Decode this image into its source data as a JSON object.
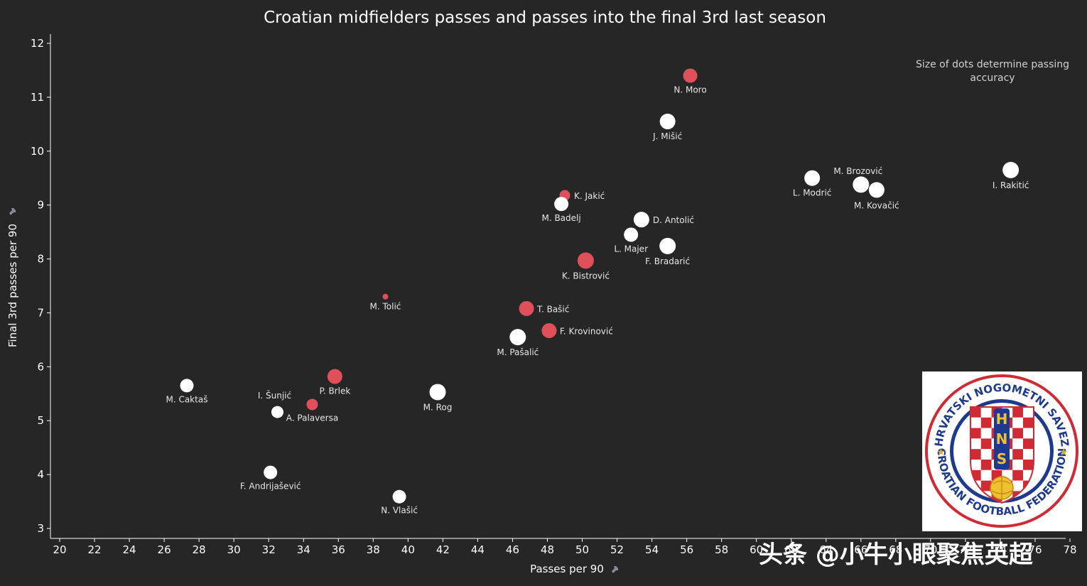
{
  "chart_data": {
    "type": "scatter",
    "title": "Croatian midfielders passes and passes into the final 3rd last season",
    "xlabel": "Passes per 90",
    "ylabel": "Final 3rd passes per 90",
    "xlim": [
      19,
      79
    ],
    "ylim": [
      2.85,
      12.2
    ],
    "xticks": [
      20,
      22,
      24,
      26,
      28,
      30,
      32,
      34,
      36,
      38,
      40,
      42,
      44,
      46,
      48,
      50,
      52,
      54,
      56,
      58,
      60,
      62,
      64,
      66,
      68,
      70,
      72,
      74,
      76,
      78
    ],
    "yticks": [
      3,
      4,
      5,
      6,
      7,
      8,
      9,
      10,
      11,
      12
    ],
    "annotation": "Size of dots determine passing accuracy",
    "colors": {
      "white": "#ffffff",
      "red": "#e0505a"
    },
    "points": [
      {
        "name": "N. Moro",
        "x": 56.2,
        "y": 11.4,
        "color": "red",
        "size": 1.0
      },
      {
        "name": "J. Mišić",
        "x": 54.9,
        "y": 10.55,
        "color": "white",
        "size": 1.1
      },
      {
        "name": "I. Rakitić",
        "x": 74.6,
        "y": 9.65,
        "color": "white",
        "size": 1.15
      },
      {
        "name": "L. Modrić",
        "x": 63.2,
        "y": 9.5,
        "color": "white",
        "size": 1.1
      },
      {
        "name": "M. Brozović",
        "x": 66.0,
        "y": 9.38,
        "color": "white",
        "size": 1.15
      },
      {
        "name": "M. Kovačić",
        "x": 66.9,
        "y": 9.28,
        "color": "white",
        "size": 1.1
      },
      {
        "name": "K. Jakić",
        "x": 49.0,
        "y": 9.18,
        "color": "red",
        "size": 0.75
      },
      {
        "name": "M. Badelj",
        "x": 48.8,
        "y": 9.02,
        "color": "white",
        "size": 1.0
      },
      {
        "name": "D. Antolić",
        "x": 53.4,
        "y": 8.73,
        "color": "white",
        "size": 1.1
      },
      {
        "name": "L. Majer",
        "x": 52.8,
        "y": 8.45,
        "color": "white",
        "size": 1.0
      },
      {
        "name": "F. Bradarić",
        "x": 54.9,
        "y": 8.24,
        "color": "white",
        "size": 1.15
      },
      {
        "name": "K. Bistrović",
        "x": 50.2,
        "y": 7.97,
        "color": "red",
        "size": 1.15
      },
      {
        "name": "M. Tolić",
        "x": 38.7,
        "y": 7.3,
        "color": "red",
        "size": 0.4
      },
      {
        "name": "T. Bašić",
        "x": 46.8,
        "y": 7.08,
        "color": "red",
        "size": 1.05
      },
      {
        "name": "F. Krovinović",
        "x": 48.1,
        "y": 6.67,
        "color": "red",
        "size": 1.05
      },
      {
        "name": "M. Pašalić",
        "x": 46.3,
        "y": 6.55,
        "color": "white",
        "size": 1.15
      },
      {
        "name": "P. Brlek",
        "x": 35.8,
        "y": 5.82,
        "color": "red",
        "size": 1.05
      },
      {
        "name": "M. Caktaš",
        "x": 27.3,
        "y": 5.65,
        "color": "white",
        "size": 0.95
      },
      {
        "name": "M. Rog",
        "x": 41.7,
        "y": 5.53,
        "color": "white",
        "size": 1.15
      },
      {
        "name": "A. Palaversa",
        "x": 34.5,
        "y": 5.3,
        "color": "red",
        "size": 0.8
      },
      {
        "name": "I. Šunjić",
        "x": 32.5,
        "y": 5.16,
        "color": "white",
        "size": 0.85
      },
      {
        "name": "F. Andrijašević",
        "x": 32.1,
        "y": 4.04,
        "color": "white",
        "size": 0.95
      },
      {
        "name": "N. Vlašić",
        "x": 39.5,
        "y": 3.59,
        "color": "white",
        "size": 0.95
      }
    ]
  },
  "logo": {
    "top_text": "HRVATSKI NOGOMETNI SAVEZ",
    "bottom_text": "CROATIAN FOOTBALL FEDERATION",
    "initials": [
      "H",
      "N",
      "S"
    ]
  },
  "watermark": "头条 @小牛小眼聚焦英超"
}
